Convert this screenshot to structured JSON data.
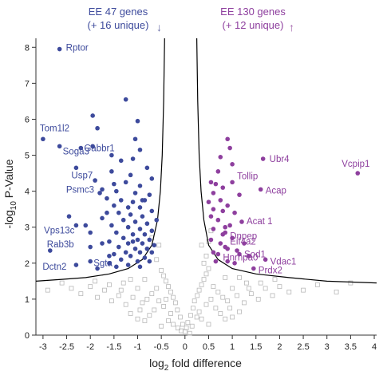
{
  "chart_data": {
    "type": "scatter",
    "xlabel_main": "log",
    "xlabel_sub": "2",
    "xlabel_rest": " fold difference",
    "ylabel_pre": "-log",
    "ylabel_sub": "10",
    "ylabel_rest": " P-Value",
    "xlim": [
      -3.15,
      4.05
    ],
    "ylim": [
      0,
      8.25
    ],
    "xticks": [
      "-3",
      "-2.5",
      "-2",
      "-1.5",
      "-1",
      "-0.5",
      "0",
      "0.5",
      "1",
      "1.5",
      "2",
      "2.5",
      "3",
      "3.5",
      "4"
    ],
    "xtick_values": [
      -3,
      -2.5,
      -2,
      -1.5,
      -1,
      -0.5,
      0,
      0.5,
      1,
      1.5,
      2,
      2.5,
      3,
      3.5,
      4
    ],
    "yticks": [
      "0",
      "1",
      "2",
      "3",
      "4",
      "5",
      "6",
      "7",
      "8"
    ],
    "ytick_values": [
      0,
      1,
      2,
      3,
      4,
      5,
      6,
      7,
      8
    ],
    "header_left": {
      "line1": "EE 47 genes",
      "line2": "(+ 16 unique)",
      "arrow": "↓"
    },
    "header_right": {
      "line1": "EE 130 genes",
      "line2": "(+ 12 unique)",
      "arrow": "↑"
    },
    "colors": {
      "down": "#3d4a9c",
      "up": "#8e3f9e",
      "ns": "#b8b8b8",
      "threshold": "#000000"
    },
    "threshold_curve": {
      "left": [
        [
          -0.43,
          8.25
        ],
        [
          -0.45,
          6.5
        ],
        [
          -0.48,
          5.0
        ],
        [
          -0.52,
          4.0
        ],
        [
          -0.58,
          3.2
        ],
        [
          -0.7,
          2.5
        ],
        [
          -0.9,
          2.1
        ],
        [
          -1.2,
          1.85
        ],
        [
          -1.6,
          1.7
        ],
        [
          -2.1,
          1.6
        ],
        [
          -2.6,
          1.55
        ],
        [
          -3.15,
          1.5
        ]
      ],
      "right": [
        [
          0.25,
          8.25
        ],
        [
          0.27,
          6.5
        ],
        [
          0.3,
          5.0
        ],
        [
          0.34,
          4.0
        ],
        [
          0.4,
          3.2
        ],
        [
          0.5,
          2.5
        ],
        [
          0.7,
          2.1
        ],
        [
          1.0,
          1.85
        ],
        [
          1.5,
          1.7
        ],
        [
          2.2,
          1.6
        ],
        [
          3.0,
          1.5
        ],
        [
          4.05,
          1.45
        ]
      ]
    },
    "labeled_down": [
      {
        "label": "Rptor",
        "x": -2.65,
        "y": 7.95
      },
      {
        "label": "Tom1l2",
        "x": -3.0,
        "y": 5.45
      },
      {
        "label": "Soga3",
        "x": -2.65,
        "y": 5.25
      },
      {
        "label": "Gabbr1",
        "x": -2.2,
        "y": 5.2
      },
      {
        "label": "Usp7",
        "x": -2.3,
        "y": 4.65
      },
      {
        "label": "Psmc3",
        "x": -1.75,
        "y": 4.05
      },
      {
        "label": "Vps13c",
        "x": -2.3,
        "y": 3.05
      },
      {
        "label": "Rab3b",
        "x": -2.85,
        "y": 2.35
      },
      {
        "label": "Sgta",
        "x": -2.0,
        "y": 2.05
      },
      {
        "label": "Dctn2",
        "x": -2.3,
        "y": 1.95
      }
    ],
    "labeled_up": [
      {
        "label": "Ubr4",
        "x": 1.65,
        "y": 4.9
      },
      {
        "label": "Vcpip1",
        "x": 3.65,
        "y": 4.5
      },
      {
        "label": "Tollip",
        "x": 1.0,
        "y": 4.25
      },
      {
        "label": "Acap",
        "x": 1.6,
        "y": 4.05
      },
      {
        "label": "Acat 1",
        "x": 1.2,
        "y": 3.15
      },
      {
        "label": "Dnpep",
        "x": 0.85,
        "y": 2.85
      },
      {
        "label": "Eif4a2",
        "x": 0.85,
        "y": 2.45
      },
      {
        "label": "Sod1",
        "x": 1.15,
        "y": 2.25
      },
      {
        "label": "Hnrnpa0",
        "x": 0.7,
        "y": 2.25
      },
      {
        "label": "Vdac1",
        "x": 1.7,
        "y": 2.1
      },
      {
        "label": "Prdx2",
        "x": 1.45,
        "y": 1.85
      }
    ],
    "points_down": [
      [
        -1.25,
        6.55
      ],
      [
        -1.95,
        6.1
      ],
      [
        -1.85,
        5.75
      ],
      [
        -1.0,
        5.95
      ],
      [
        -1.95,
        5.25
      ],
      [
        -1.55,
        5.0
      ],
      [
        -1.05,
        5.45
      ],
      [
        -0.95,
        5.15
      ],
      [
        -1.35,
        4.85
      ],
      [
        -0.8,
        4.65
      ],
      [
        -1.55,
        4.55
      ],
      [
        -1.15,
        4.45
      ],
      [
        -0.7,
        4.35
      ],
      [
        -1.9,
        4.3
      ],
      [
        -1.25,
        4.25
      ],
      [
        -0.95,
        4.15
      ],
      [
        -1.45,
        4.0
      ],
      [
        -1.05,
        3.95
      ],
      [
        -0.75,
        3.9
      ],
      [
        -1.65,
        3.8
      ],
      [
        -1.35,
        3.75
      ],
      [
        -1.1,
        3.7
      ],
      [
        -0.85,
        3.75
      ],
      [
        -1.5,
        3.6
      ],
      [
        -1.2,
        3.55
      ],
      [
        -0.95,
        3.55
      ],
      [
        -0.7,
        3.45
      ],
      [
        -1.65,
        3.4
      ],
      [
        -1.4,
        3.4
      ],
      [
        -1.15,
        3.35
      ],
      [
        -0.9,
        3.3
      ],
      [
        -1.3,
        3.2
      ],
      [
        -1.05,
        3.15
      ],
      [
        -0.8,
        3.1
      ],
      [
        -1.55,
        3.05
      ],
      [
        -1.2,
        3.0
      ],
      [
        -0.95,
        2.95
      ],
      [
        -0.7,
        2.9
      ],
      [
        -1.45,
        2.85
      ],
      [
        -1.1,
        2.8
      ],
      [
        -0.85,
        2.8
      ],
      [
        -1.3,
        2.7
      ],
      [
        -1.0,
        2.65
      ],
      [
        -0.75,
        2.65
      ],
      [
        -1.6,
        2.6
      ],
      [
        -1.2,
        2.55
      ],
      [
        -0.9,
        2.55
      ],
      [
        -0.65,
        2.5
      ],
      [
        -1.4,
        2.45
      ],
      [
        -1.05,
        2.4
      ],
      [
        -0.8,
        2.4
      ],
      [
        -1.25,
        2.3
      ],
      [
        -0.95,
        2.3
      ],
      [
        -0.7,
        2.3
      ],
      [
        -1.5,
        2.25
      ],
      [
        -1.15,
        2.2
      ],
      [
        -0.85,
        2.15
      ],
      [
        -1.35,
        2.1
      ],
      [
        -1.0,
        2.05
      ],
      [
        -0.75,
        2.05
      ],
      [
        -1.6,
        2.0
      ],
      [
        -1.2,
        1.95
      ],
      [
        -0.95,
        1.9
      ],
      [
        -1.45,
        1.9
      ],
      [
        -2.0,
        2.85
      ],
      [
        -2.45,
        3.3
      ],
      [
        -2.1,
        3.05
      ],
      [
        -1.75,
        3.25
      ],
      [
        -2.0,
        2.45
      ],
      [
        -1.75,
        2.55
      ],
      [
        -1.6,
        2.2
      ],
      [
        -1.85,
        1.85
      ],
      [
        -1.1,
        2.6
      ],
      [
        -0.9,
        3.75
      ],
      [
        -1.8,
        3.95
      ],
      [
        -1.1,
        4.9
      ],
      [
        -1.5,
        4.2
      ],
      [
        -0.6,
        3.2
      ]
    ],
    "points_up": [
      [
        0.9,
        5.45
      ],
      [
        0.95,
        5.2
      ],
      [
        0.75,
        4.95
      ],
      [
        1.0,
        4.75
      ],
      [
        0.7,
        4.55
      ],
      [
        0.55,
        4.25
      ],
      [
        0.8,
        4.1
      ],
      [
        0.6,
        3.95
      ],
      [
        0.75,
        3.75
      ],
      [
        0.5,
        3.7
      ],
      [
        0.9,
        3.6
      ],
      [
        0.6,
        3.5
      ],
      [
        0.8,
        3.45
      ],
      [
        1.05,
        3.4
      ],
      [
        0.55,
        3.3
      ],
      [
        0.7,
        3.2
      ],
      [
        0.95,
        3.05
      ],
      [
        0.6,
        2.95
      ],
      [
        0.8,
        2.8
      ],
      [
        1.0,
        2.7
      ],
      [
        0.55,
        2.65
      ],
      [
        0.75,
        2.55
      ],
      [
        0.9,
        2.4
      ],
      [
        1.1,
        2.35
      ],
      [
        0.6,
        2.3
      ],
      [
        1.25,
        2.55
      ],
      [
        1.35,
        2.2
      ],
      [
        0.9,
        2.05
      ],
      [
        1.05,
        2.0
      ],
      [
        0.65,
        2.05
      ],
      [
        1.15,
        3.9
      ],
      [
        0.85,
        3.0
      ],
      [
        0.65,
        4.2
      ]
    ],
    "points_ns": [
      [
        0.0,
        0.1
      ],
      [
        -0.05,
        0.3
      ],
      [
        0.06,
        0.35
      ],
      [
        -0.1,
        0.5
      ],
      [
        0.12,
        0.55
      ],
      [
        -0.16,
        0.7
      ],
      [
        0.17,
        0.75
      ],
      [
        -0.2,
        0.9
      ],
      [
        0.2,
        0.95
      ],
      [
        -0.25,
        1.05
      ],
      [
        0.26,
        1.1
      ],
      [
        -0.3,
        1.2
      ],
      [
        0.3,
        1.25
      ],
      [
        -0.35,
        1.35
      ],
      [
        0.35,
        1.4
      ],
      [
        -0.4,
        1.5
      ],
      [
        0.4,
        1.55
      ],
      [
        -0.45,
        1.65
      ],
      [
        0.45,
        1.7
      ],
      [
        -0.5,
        1.8
      ],
      [
        0.5,
        1.85
      ],
      [
        -0.6,
        1.3
      ],
      [
        0.6,
        1.35
      ],
      [
        -0.7,
        1.15
      ],
      [
        0.7,
        1.2
      ],
      [
        -0.8,
        1.0
      ],
      [
        0.8,
        1.05
      ],
      [
        -0.9,
        0.9
      ],
      [
        0.9,
        0.95
      ],
      [
        -1.0,
        1.3
      ],
      [
        1.0,
        1.3
      ],
      [
        -1.1,
        1.05
      ],
      [
        1.1,
        1.1
      ],
      [
        -1.25,
        0.85
      ],
      [
        1.25,
        0.9
      ],
      [
        -1.4,
        1.1
      ],
      [
        1.4,
        1.15
      ],
      [
        -1.55,
        0.95
      ],
      [
        1.55,
        1.0
      ],
      [
        -1.7,
        1.25
      ],
      [
        1.7,
        1.3
      ],
      [
        -1.85,
        1.05
      ],
      [
        1.85,
        1.1
      ],
      [
        -2.0,
        1.35
      ],
      [
        2.0,
        1.35
      ],
      [
        -2.2,
        1.15
      ],
      [
        2.2,
        1.2
      ],
      [
        -2.4,
        1.3
      ],
      [
        2.5,
        1.25
      ],
      [
        -0.3,
        0.6
      ],
      [
        0.3,
        0.65
      ],
      [
        -0.45,
        0.8
      ],
      [
        0.45,
        0.85
      ],
      [
        -0.55,
        0.95
      ],
      [
        0.55,
        1.0
      ],
      [
        -0.65,
        0.7
      ],
      [
        0.65,
        0.75
      ],
      [
        -0.75,
        0.55
      ],
      [
        0.75,
        0.6
      ],
      [
        -0.85,
        0.4
      ],
      [
        0.85,
        0.45
      ],
      [
        -0.15,
        0.2
      ],
      [
        0.15,
        0.25
      ],
      [
        -0.35,
        0.4
      ],
      [
        0.35,
        0.45
      ],
      [
        -0.95,
        0.7
      ],
      [
        0.95,
        0.75
      ],
      [
        -1.15,
        0.6
      ],
      [
        1.15,
        0.65
      ],
      [
        -1.3,
        1.45
      ],
      [
        1.3,
        1.45
      ],
      [
        -1.6,
        1.4
      ],
      [
        1.6,
        1.45
      ],
      [
        -0.6,
        2.1
      ],
      [
        0.4,
        2.0
      ],
      [
        0.35,
        2.5
      ],
      [
        -0.55,
        2.5
      ],
      [
        -0.7,
        2.7
      ],
      [
        0.55,
        2.9
      ],
      [
        0.45,
        2.2
      ],
      [
        0.5,
        2.6
      ],
      [
        -0.4,
        1.0
      ],
      [
        0.25,
        0.5
      ],
      [
        -0.25,
        0.3
      ],
      [
        -1.9,
        1.5
      ],
      [
        1.9,
        1.55
      ],
      [
        -2.6,
        1.45
      ],
      [
        2.8,
        1.4
      ],
      [
        3.2,
        1.2
      ],
      [
        3.5,
        1.45
      ],
      [
        -2.9,
        1.25
      ],
      [
        -1.0,
        0.45
      ],
      [
        1.0,
        0.5
      ],
      [
        -0.5,
        0.25
      ],
      [
        0.5,
        0.3
      ],
      [
        0.1,
        0.05
      ],
      [
        -0.08,
        0.12
      ],
      [
        0.03,
        0.2
      ],
      [
        -1.35,
        1.25
      ],
      [
        1.35,
        1.3
      ],
      [
        -0.85,
        1.55
      ],
      [
        0.85,
        1.6
      ],
      [
        -1.15,
        1.55
      ],
      [
        1.15,
        1.6
      ]
    ]
  }
}
